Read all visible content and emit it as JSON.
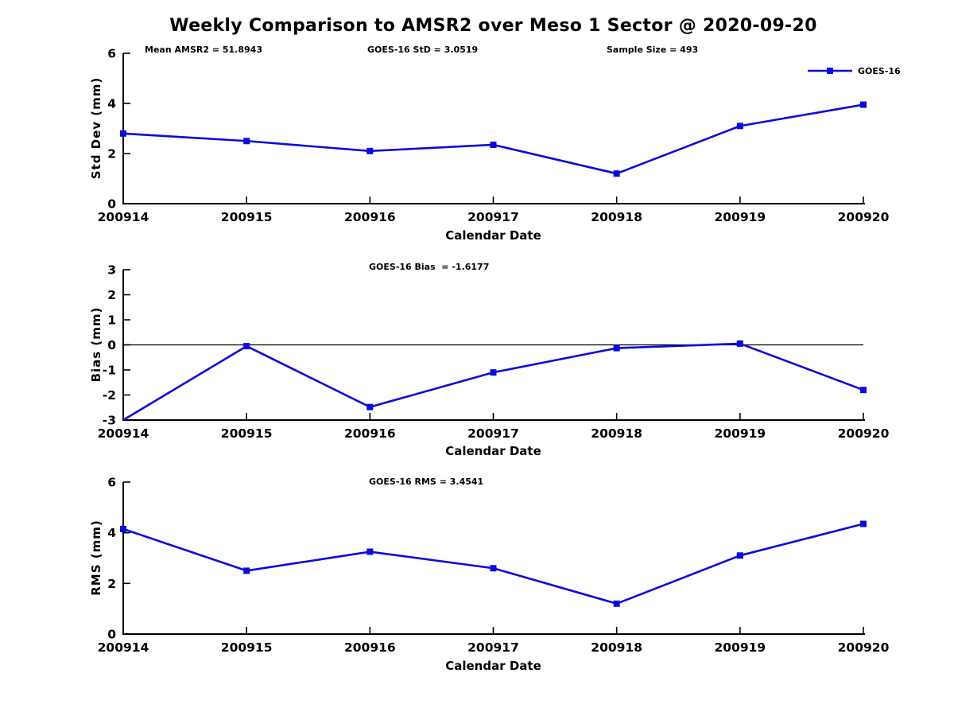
{
  "title": "Weekly Comparison to AMSR2 over Meso 1 Sector @ 2020-09-20",
  "legend": {
    "label": "GOES-16"
  },
  "colors": {
    "series": "#0b0bdd",
    "axis": "#000000"
  },
  "chart_data": [
    {
      "type": "line",
      "panel": "std-dev",
      "annotations": [
        {
          "text": "Mean AMSR2 = 51.8943"
        },
        {
          "text": "GOES-16 StD = 3.0519"
        },
        {
          "text": "Sample Size = 493"
        }
      ],
      "categories": [
        "200914",
        "200915",
        "200916",
        "200917",
        "200918",
        "200919",
        "200920"
      ],
      "series": [
        {
          "name": "GOES-16",
          "values": [
            2.8,
            2.5,
            2.1,
            2.35,
            1.2,
            3.1,
            3.95
          ]
        }
      ],
      "xlabel": "Calendar Date",
      "ylabel": "Std Dev (mm)",
      "ylim": [
        0,
        6
      ],
      "yticks": [
        0,
        2,
        4,
        6
      ],
      "grid": false,
      "legend_position": "top-right",
      "marker": "square"
    },
    {
      "type": "line",
      "panel": "bias",
      "annotation": "GOES-16 Bias  = -1.6177",
      "categories": [
        "200914",
        "200915",
        "200916",
        "200917",
        "200918",
        "200919",
        "200920"
      ],
      "series": [
        {
          "name": "GOES-16",
          "values": [
            -3.0,
            -0.05,
            -2.48,
            -1.1,
            -0.13,
            0.05,
            -1.8
          ]
        }
      ],
      "xlabel": "Calendar Date",
      "ylabel": "Bias (mm)",
      "ylim": [
        -3,
        3
      ],
      "yticks": [
        3,
        2,
        1,
        0,
        -1,
        -2,
        -3
      ],
      "zero_line": true,
      "grid": false,
      "marker": "square"
    },
    {
      "type": "line",
      "panel": "rms",
      "annotation": "GOES-16 RMS = 3.4541",
      "categories": [
        "200914",
        "200915",
        "200916",
        "200917",
        "200918",
        "200919",
        "200920"
      ],
      "series": [
        {
          "name": "GOES-16",
          "values": [
            4.15,
            2.5,
            3.25,
            2.6,
            1.2,
            3.1,
            4.35
          ]
        }
      ],
      "xlabel": "Calendar Date",
      "ylabel": "RMS (mm)",
      "ylim": [
        0,
        6
      ],
      "yticks": [
        0,
        2,
        4,
        6
      ],
      "grid": false,
      "marker": "square"
    }
  ]
}
